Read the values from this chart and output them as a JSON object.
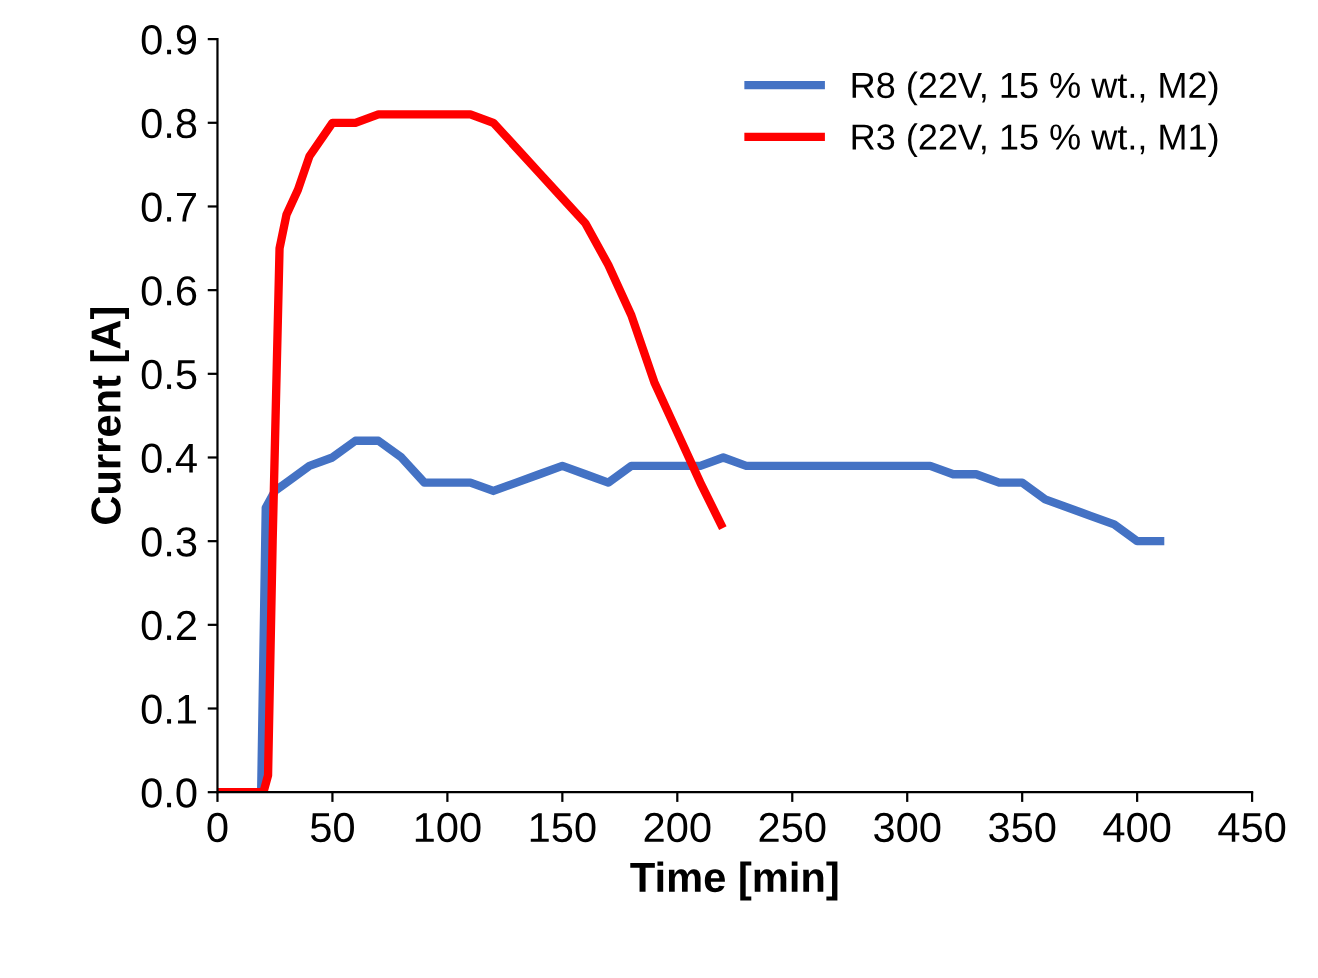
{
  "chart_data": {
    "type": "line",
    "xlabel": "Time [min]",
    "ylabel": "Current [A]",
    "xlim": [
      0,
      450
    ],
    "ylim": [
      0,
      0.9
    ],
    "xticks": [
      0,
      50,
      100,
      150,
      200,
      250,
      300,
      350,
      400,
      450
    ],
    "yticks": [
      {
        "value": 0,
        "label": "0.0"
      },
      0.1,
      0.2,
      0.3,
      0.4,
      0.5,
      0.6,
      0.7,
      0.8,
      0.9
    ],
    "grid": false,
    "legend": "top right",
    "line_style": "solid",
    "marker": "none",
    "series": [
      {
        "name": "R8 (22V, 15 % wt., M2)",
        "color": "#4472c4",
        "x": [
          0,
          19,
          21,
          25,
          30,
          40,
          50,
          60,
          70,
          80,
          90,
          100,
          110,
          120,
          130,
          140,
          150,
          160,
          170,
          180,
          190,
          200,
          210,
          220,
          230,
          250,
          300,
          310,
          320,
          330,
          340,
          350,
          360,
          380,
          390,
          400,
          410
        ],
        "values": [
          0,
          0,
          0.34,
          0.36,
          0.37,
          0.39,
          0.4,
          0.42,
          0.42,
          0.4,
          0.37,
          0.37,
          0.37,
          0.36,
          0.37,
          0.38,
          0.39,
          0.38,
          0.37,
          0.39,
          0.39,
          0.39,
          0.39,
          0.4,
          0.39,
          0.39,
          0.39,
          0.39,
          0.38,
          0.38,
          0.37,
          0.37,
          0.35,
          0.33,
          0.32,
          0.3,
          0.3
        ]
      },
      {
        "name": "R3 (22V, 15 % wt., M1)",
        "color": "#ff0000",
        "x": [
          0,
          10,
          20,
          22,
          24,
          27,
          30,
          35,
          40,
          50,
          55,
          60,
          70,
          90,
          110,
          120,
          130,
          140,
          150,
          160,
          170,
          180,
          190,
          200,
          210,
          219
        ],
        "values": [
          0,
          0,
          0,
          0.02,
          0.3,
          0.65,
          0.69,
          0.72,
          0.76,
          0.8,
          0.8,
          0.8,
          0.81,
          0.81,
          0.81,
          0.8,
          0.77,
          0.74,
          0.71,
          0.68,
          0.63,
          0.57,
          0.49,
          0.43,
          0.37,
          0.32
        ]
      }
    ]
  }
}
